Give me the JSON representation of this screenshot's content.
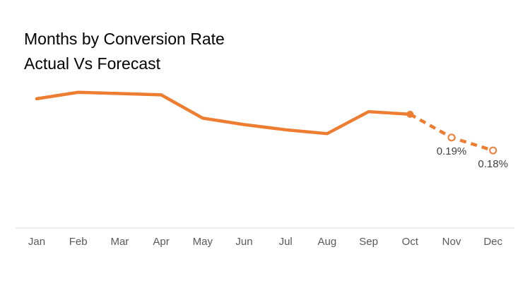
{
  "chart_data": {
    "type": "line",
    "title": "Months by Conversion Rate",
    "subtitle": "Actual Vs Forecast",
    "categories": [
      "Jan",
      "Feb",
      "Mar",
      "Apr",
      "May",
      "Jun",
      "Jul",
      "Aug",
      "Sep",
      "Oct",
      "Nov",
      "Dec"
    ],
    "series": [
      {
        "line_style": "solid",
        "color": "#ED7D31",
        "values": [
          0.22,
          0.225,
          0.224,
          0.223,
          0.205,
          0.2,
          0.196,
          0.193,
          0.21,
          0.208,
          null,
          null
        ]
      },
      {
        "line_style": "dashed",
        "color": "#ED7D31",
        "values": [
          null,
          null,
          null,
          null,
          null,
          null,
          null,
          null,
          null,
          0.208,
          0.19,
          0.18
        ]
      }
    ],
    "data_labels": [
      {
        "category": "Nov",
        "text": "0.19%"
      },
      {
        "category": "Dec",
        "text": "0.18%"
      }
    ],
    "ylim": [
      0.12,
      0.28
    ],
    "grid": false,
    "legend": "none",
    "xlabel": "",
    "ylabel": ""
  }
}
